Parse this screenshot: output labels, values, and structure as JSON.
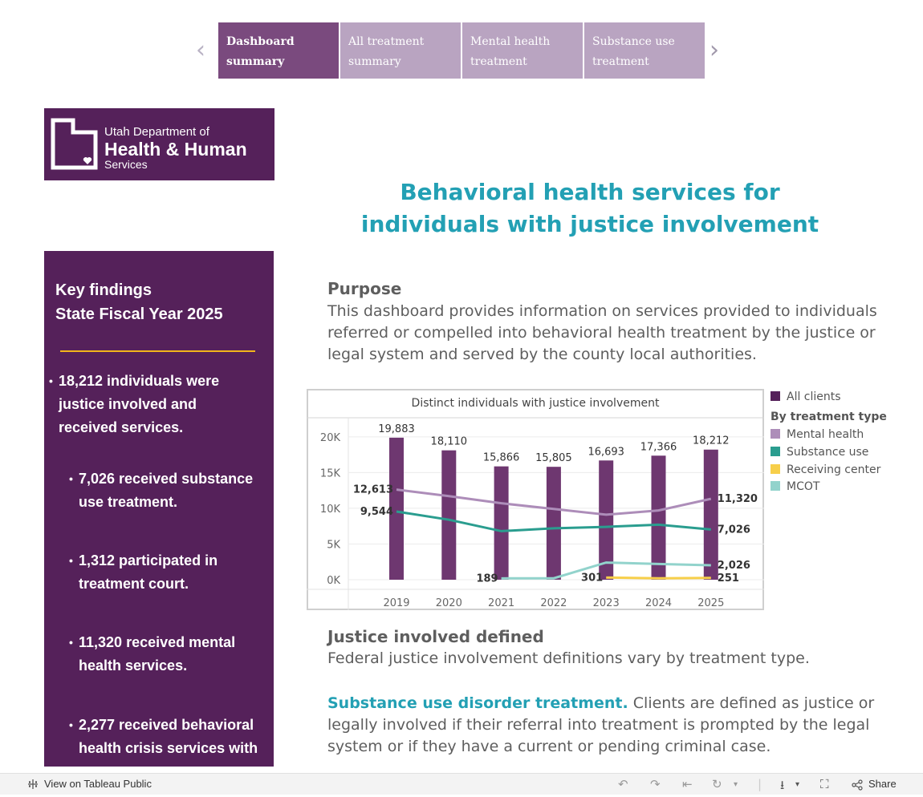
{
  "tabs": [
    {
      "label": "Dashboard\nsummary",
      "line1": "Dashboard",
      "line2": "summary",
      "active": true
    },
    {
      "line1": "All treatment",
      "line2": "summary"
    },
    {
      "line1": "Mental health",
      "line2": "treatment"
    },
    {
      "line1": "Substance use",
      "line2": "treatment"
    }
  ],
  "logo": {
    "line1": "Utah Department of",
    "line2": "Health & Human",
    "line3": "Services"
  },
  "side": {
    "title": "Key findings\nState Fiscal Year 2025",
    "items": [
      "18,212 individuals were justice involved and received services.",
      "7,026 received substance use treatment.",
      "1,312 participated in treatment court.",
      "11,320 received mental health services.",
      "2,277 received behavioral health crisis services with"
    ]
  },
  "heading": "Behavioral health services for\nindividuals with justice involvement",
  "purpose": {
    "heading": "Purpose",
    "body": "This dashboard provides information on services provided to individuals referred or compelled into behavioral health treatment by the justice or legal system and served by the county local authorities."
  },
  "justice": {
    "heading": "Justice involved defined",
    "body": "Federal justice involvement definitions vary by treatment type.",
    "sud_label": "Substance use disorder treatment.",
    "sud_body": " Clients are defined as justice or legally involved if their referral into treatment is prompted by the legal system or if they have a current or pending criminal case."
  },
  "legend": {
    "all_clients": "All clients",
    "by_type": "By treatment type",
    "mental": "Mental health",
    "substance": "Substance use",
    "receiving": "Receiving center",
    "mcot": "MCOT"
  },
  "colors": {
    "purple_dark": "#55215a",
    "bar": "#6e3770",
    "mental": "#ad8db9",
    "substance": "#2a9d8f",
    "receiving": "#f7cf4a",
    "mcot": "#92d3cc",
    "teal_heading": "#23a0b4"
  },
  "chart_data": {
    "type": "bar",
    "title": "Distinct individuals with justice involvement",
    "categories": [
      "2019",
      "2020",
      "2021",
      "2022",
      "2023",
      "2024",
      "2025"
    ],
    "ylim": [
      0,
      22000
    ],
    "yticks": [
      "0K",
      "5K",
      "10K",
      "15K",
      "20K"
    ],
    "ytick_values": [
      0,
      5000,
      10000,
      15000,
      20000
    ],
    "series": [
      {
        "name": "All clients",
        "kind": "bar",
        "values": [
          19883,
          18110,
          15866,
          15805,
          16693,
          17366,
          18212
        ],
        "labels": [
          "19,883",
          "18,110",
          "15,866",
          "15,805",
          "16,693",
          "17,366",
          "18,212"
        ]
      },
      {
        "name": "Mental health",
        "kind": "line",
        "values": [
          12613,
          11700,
          10700,
          9900,
          9100,
          9700,
          11320
        ]
      },
      {
        "name": "Substance use",
        "kind": "line",
        "values": [
          9544,
          8400,
          6800,
          7200,
          7400,
          7700,
          7026
        ]
      },
      {
        "name": "MCOT",
        "kind": "line",
        "values": [
          null,
          null,
          189,
          200,
          2400,
          2200,
          2026
        ]
      },
      {
        "name": "Receiving center",
        "kind": "line",
        "values": [
          null,
          null,
          null,
          null,
          301,
          200,
          251
        ]
      }
    ],
    "point_labels": [
      {
        "text": "12,613",
        "series": "Mental health",
        "i": 0
      },
      {
        "text": "9,544",
        "series": "Substance use",
        "i": 0
      },
      {
        "text": "189",
        "series": "MCOT",
        "i": 2
      },
      {
        "text": "301",
        "series": "Receiving center",
        "i": 4
      },
      {
        "text": "11,320",
        "series": "Mental health",
        "i": 6
      },
      {
        "text": "7,026",
        "series": "Substance use",
        "i": 6
      },
      {
        "text": "2,026",
        "series": "MCOT",
        "i": 6
      },
      {
        "text": "251",
        "series": "Receiving center",
        "i": 6
      }
    ]
  },
  "toolbar": {
    "view_label": "View on Tableau Public",
    "share_label": "Share"
  }
}
